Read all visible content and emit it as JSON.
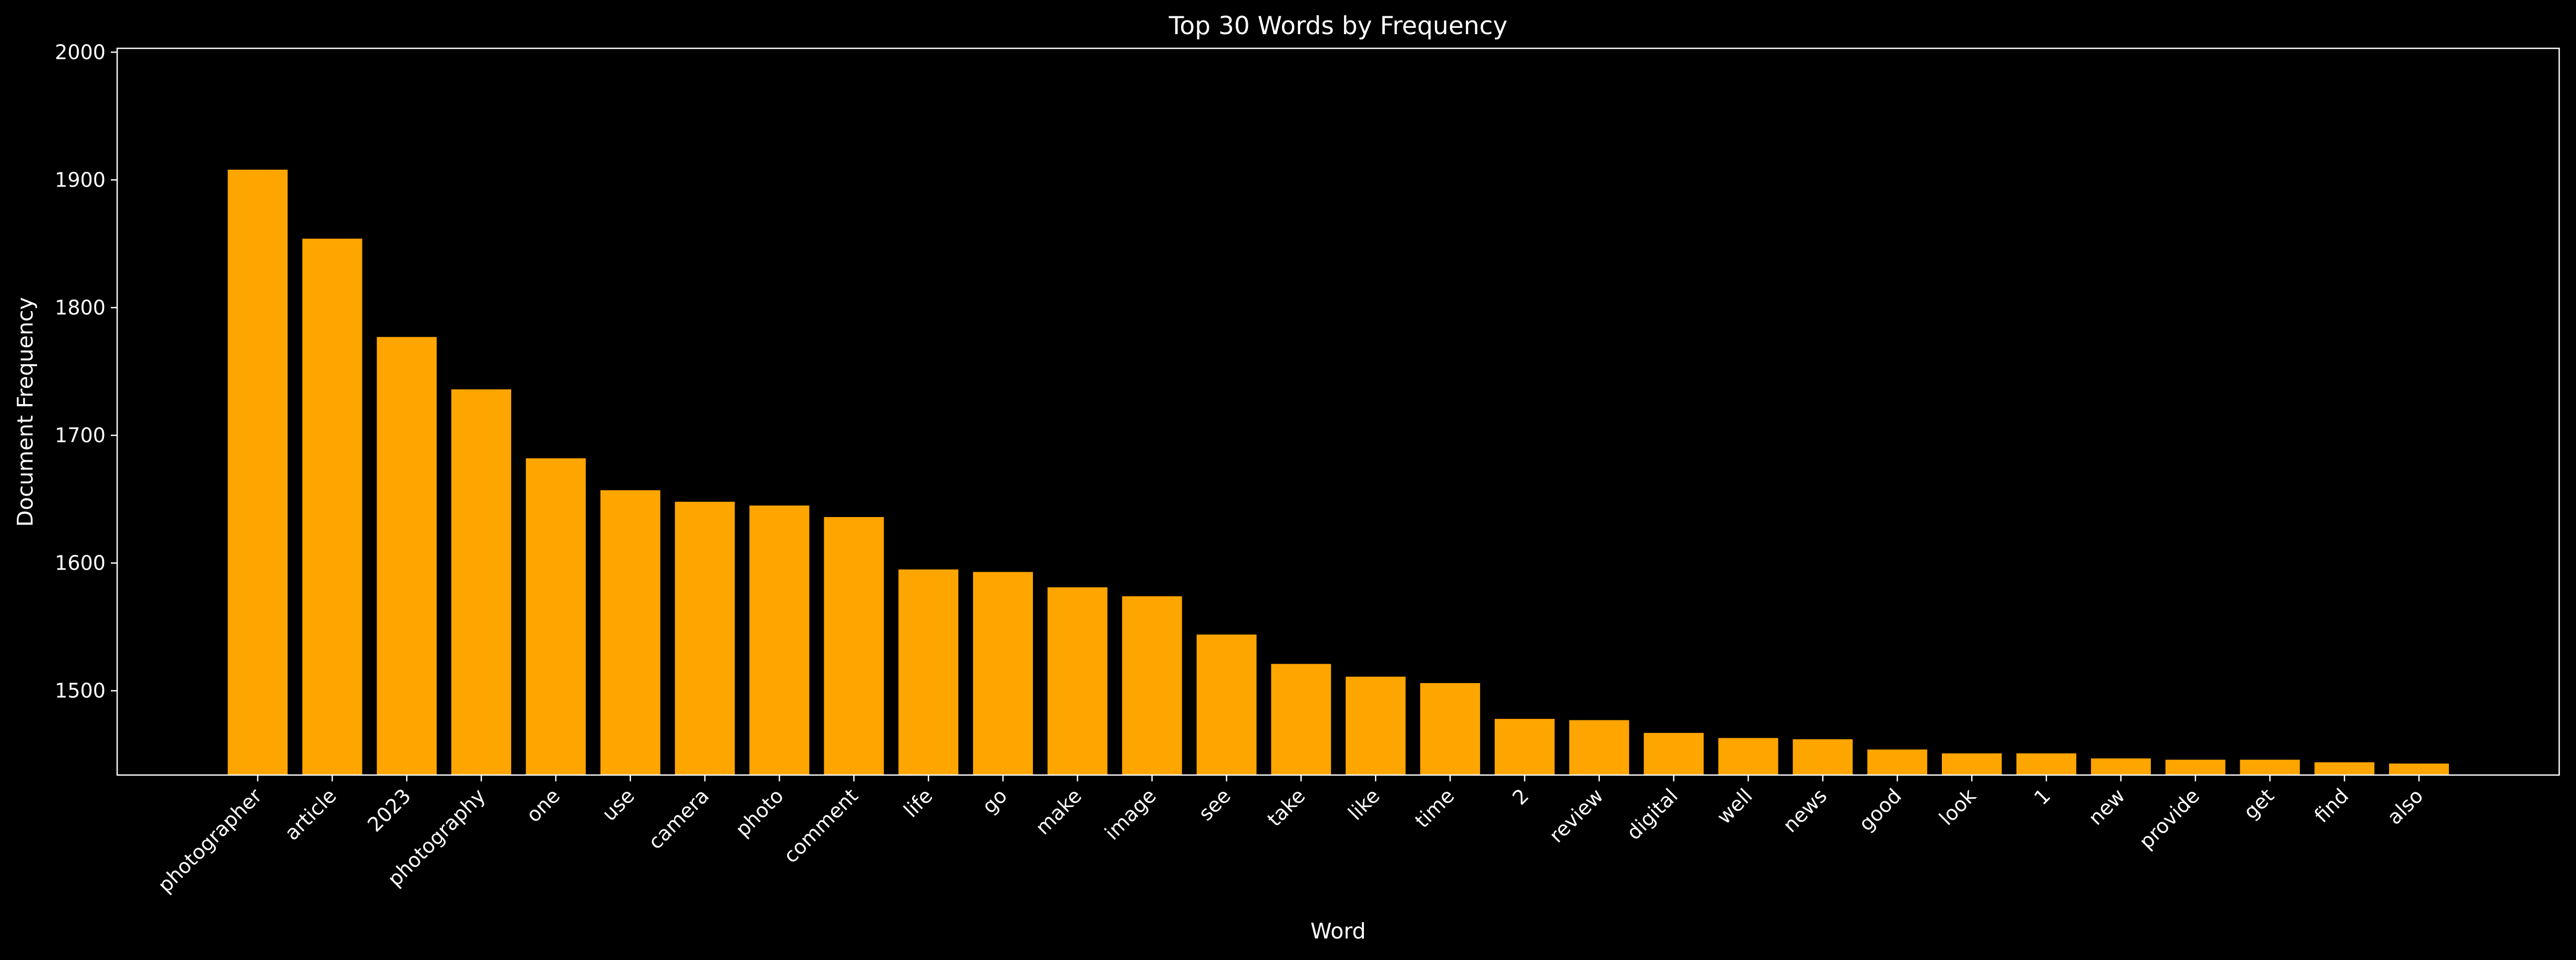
{
  "chart_data": {
    "type": "bar",
    "title": "Top 30 Words by Frequency",
    "xlabel": "Word",
    "ylabel": "Document Frequency",
    "ylim": [
      1434,
      2003
    ],
    "yticks": [
      1500,
      1600,
      1700,
      1800,
      1900,
      2000
    ],
    "bar_color": "#ffa500",
    "background": "#000000",
    "grid": false,
    "categories": [
      "photographer",
      "article",
      "2023",
      "photography",
      "one",
      "use",
      "camera",
      "photo",
      "comment",
      "life",
      "go",
      "make",
      "image",
      "see",
      "take",
      "like",
      "time",
      "2",
      "review",
      "digital",
      "well",
      "news",
      "good",
      "look",
      "1",
      "new",
      "provide",
      "get",
      "find",
      "also"
    ],
    "values": [
      1908,
      1854,
      1777,
      1736,
      1682,
      1657,
      1648,
      1645,
      1636,
      1595,
      1593,
      1581,
      1574,
      1544,
      1521,
      1511,
      1506,
      1478,
      1477,
      1467,
      1463,
      1462,
      1454,
      1451,
      1451,
      1447,
      1446,
      1446,
      1444,
      1443
    ]
  }
}
